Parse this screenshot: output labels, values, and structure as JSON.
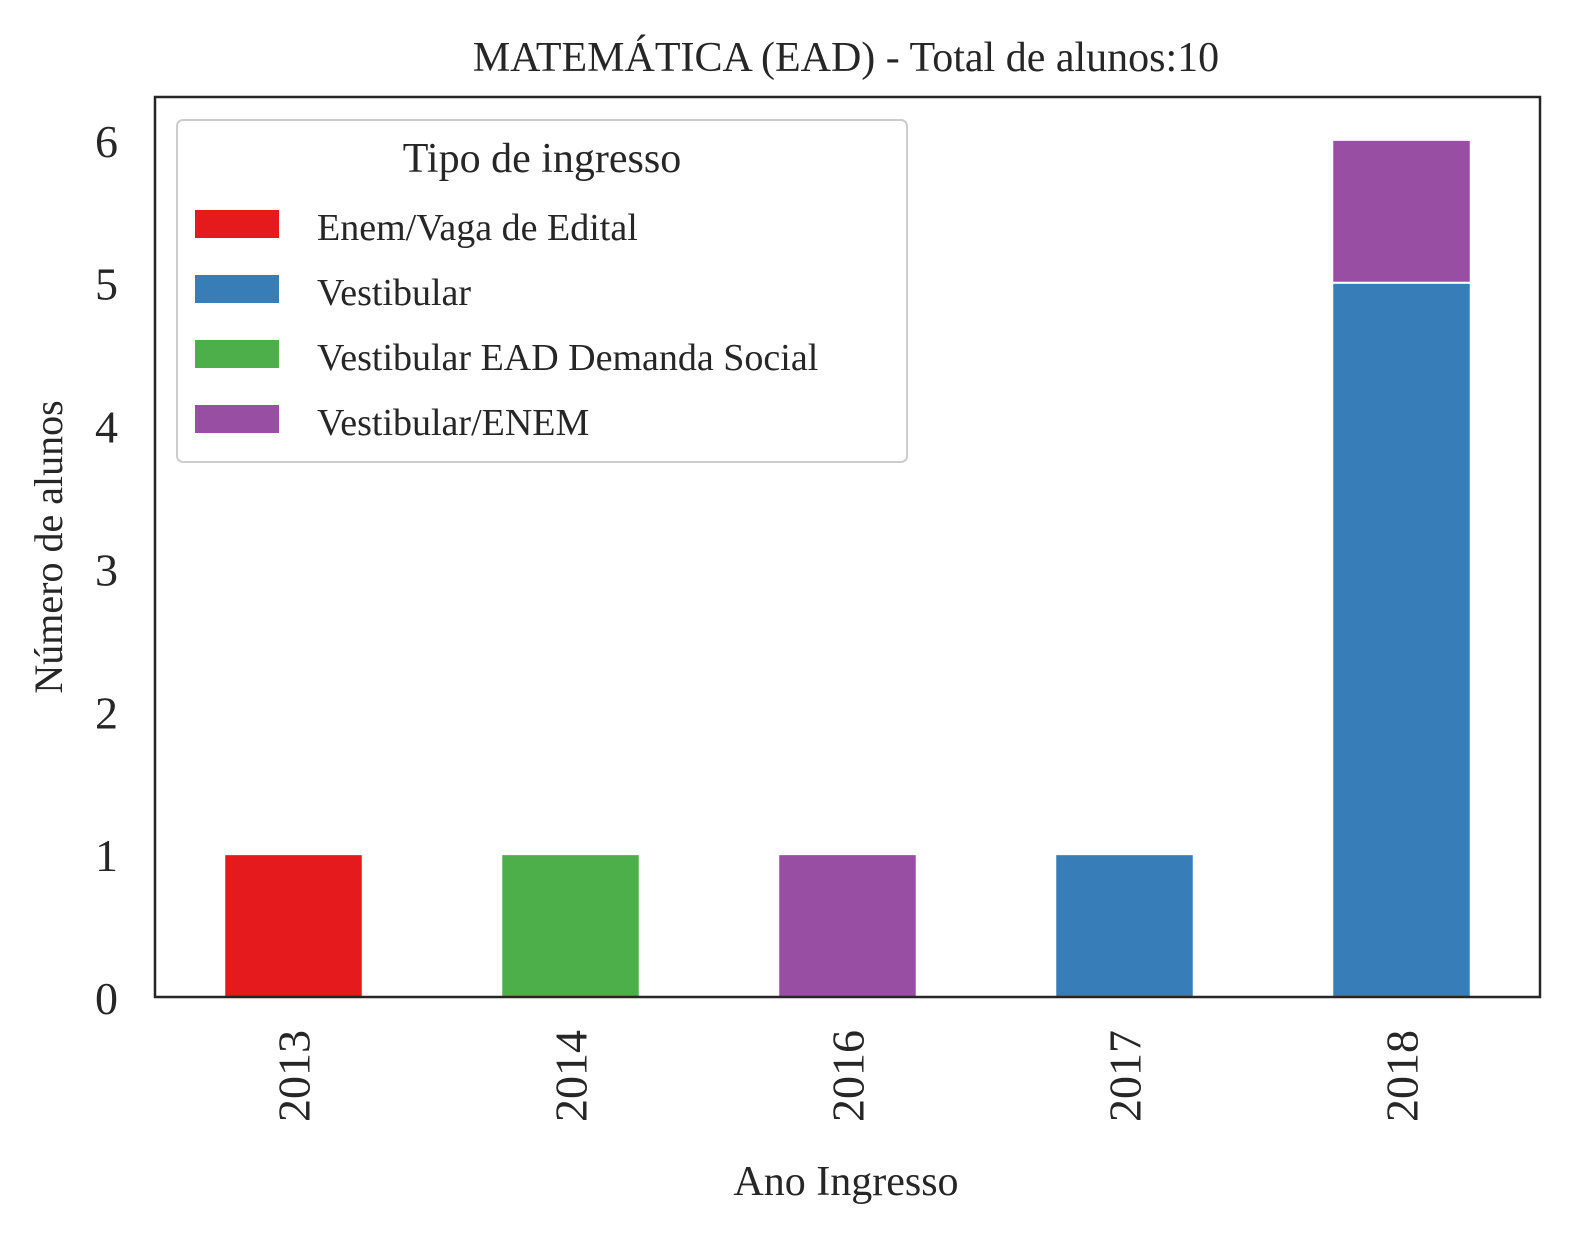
{
  "chart_data": {
    "type": "bar",
    "stacked": true,
    "title": "MATEMÁTICA (EAD) - Total de alunos:10",
    "xlabel": "Ano Ingresso",
    "ylabel": "Número de alunos",
    "categories": [
      "2013",
      "2014",
      "2016",
      "2017",
      "2018"
    ],
    "y_ticks": [
      "0",
      "1",
      "2",
      "3",
      "4",
      "5",
      "6"
    ],
    "ylim": [
      0,
      6.3
    ],
    "grid": false,
    "legend": {
      "title": "Tipo de ingresso",
      "position": "top-left"
    },
    "series": [
      {
        "name": "Enem/Vaga de Edital",
        "color": "#e41a1c",
        "values": [
          1,
          0,
          0,
          0,
          0
        ]
      },
      {
        "name": "Vestibular",
        "color": "#377eb8",
        "values": [
          0,
          0,
          0,
          1,
          5
        ]
      },
      {
        "name": "Vestibular EAD Demanda Social",
        "color": "#4daf4a",
        "values": [
          0,
          1,
          0,
          0,
          0
        ]
      },
      {
        "name": "Vestibular/ENEM",
        "color": "#984ea3",
        "values": [
          0,
          0,
          1,
          0,
          1
        ]
      }
    ]
  }
}
